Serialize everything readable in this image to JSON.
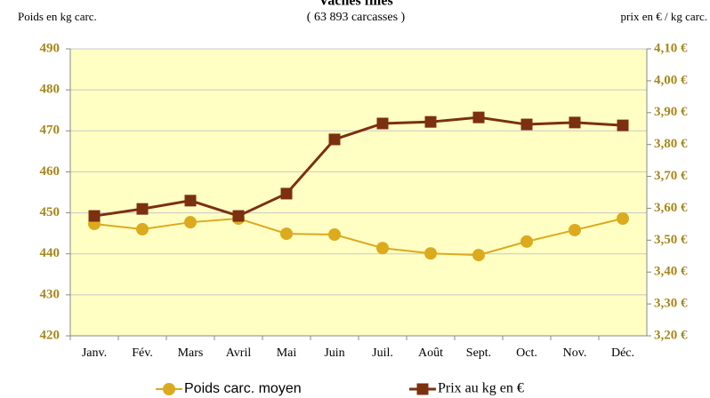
{
  "chart_data": {
    "type": "line",
    "title": "Vaches filles",
    "subtitle": "( 63 893 carcasses )",
    "ylabel": "Poids en kg carc.",
    "y2label": "prix en € / kg carc.",
    "categories": [
      "Janv.",
      "Fév.",
      "Mars",
      "Avril",
      "Mai",
      "Juin",
      "Juil.",
      "Août",
      "Sept.",
      "Oct.",
      "Nov.",
      "Déc."
    ],
    "series": [
      {
        "name": "Poids carc. moyen",
        "color": "#dcaa1e",
        "marker": "circle",
        "values": [
          447.3,
          446.0,
          447.7,
          448.6,
          444.9,
          444.7,
          441.4,
          440.1,
          439.7,
          443.0,
          445.8,
          448.6
        ]
      },
      {
        "name": "Prix au kg en €",
        "color": "#7b3010",
        "marker": "square",
        "axis": "y2",
        "values": [
          3.576,
          3.598,
          3.624,
          3.576,
          3.646,
          3.816,
          3.866,
          3.871,
          3.885,
          3.863,
          3.869,
          3.86
        ]
      }
    ],
    "ylim": [
      420,
      490
    ],
    "yticks": [
      420,
      430,
      440,
      450,
      460,
      470,
      480,
      490
    ],
    "y2lim": [
      3.2,
      4.1
    ],
    "y2ticks": [
      {
        "value": 3.2,
        "label": "3,20 €"
      },
      {
        "value": 3.3,
        "label": "3,30 €"
      },
      {
        "value": 3.4,
        "label": "3,40 €"
      },
      {
        "value": 3.5,
        "label": "3,50 €"
      },
      {
        "value": 3.6,
        "label": "3,60 €"
      },
      {
        "value": 3.7,
        "label": "3,70 €"
      },
      {
        "value": 3.8,
        "label": "3,80 €"
      },
      {
        "value": 3.9,
        "label": "3,90 €"
      },
      {
        "value": 4.0,
        "label": "4,00 €"
      },
      {
        "value": 4.1,
        "label": "4,10 €"
      }
    ],
    "grid": true,
    "legend": "bottom"
  }
}
